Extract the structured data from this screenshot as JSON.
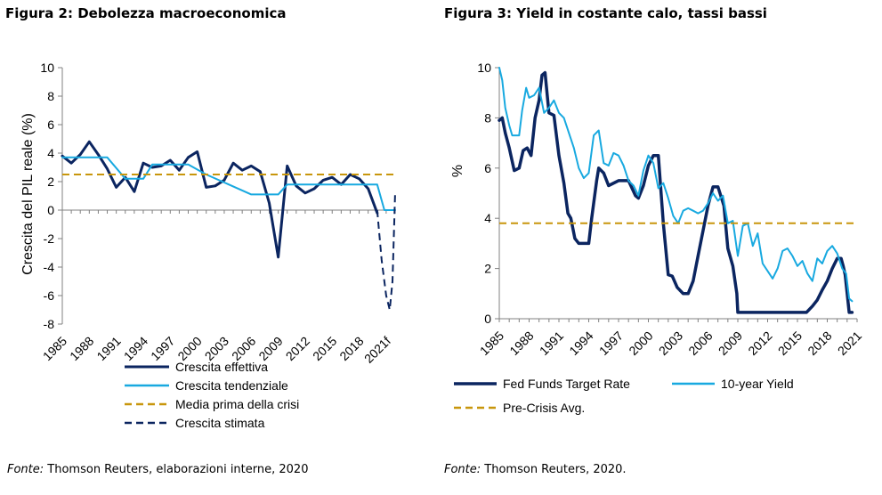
{
  "colors": {
    "navy": "#0b2560",
    "cyan": "#18a9e0",
    "gold": "#c8960c",
    "axis": "#808080"
  },
  "figure2": {
    "title": "Figura 2: Debolezza macroeconomica",
    "source_label": "Fonte:",
    "source_text": " Thomson Reuters, elaborazioni interne, 2020"
  },
  "figure3": {
    "title": "Figura 3: Yield in costante calo, tassi bassi",
    "source_label": "Fonte:",
    "source_text": " Thomson Reuters, 2020."
  },
  "chart_data": [
    {
      "type": "line",
      "ylabel": "Crescita del PIL reale (%)",
      "ylim": [
        -8,
        10
      ],
      "yticks": [
        -8,
        -6,
        -4,
        -2,
        0,
        2,
        4,
        6,
        8,
        10
      ],
      "x_range": [
        1985,
        2022
      ],
      "xtick_values": [
        1985,
        1988,
        1991,
        1994,
        1997,
        2000,
        2003,
        2006,
        2009,
        2012,
        2015,
        2018,
        2021
      ],
      "xtick_labels": [
        "1985",
        "1988",
        "1991",
        "1994",
        "1997",
        "2000",
        "2003",
        "2006",
        "2009",
        "2012",
        "2015",
        "2018",
        "2021f"
      ],
      "grid": false,
      "legend_position": "bottom",
      "series": [
        {
          "name": "Crescita effettiva",
          "color": "navy",
          "style": "solid",
          "width": 3,
          "x": [
            1985,
            1986,
            1987,
            1988,
            1989,
            1990,
            1991,
            1992,
            1993,
            1994,
            1995,
            1996,
            1997,
            1998,
            1999,
            2000,
            2001,
            2002,
            2003,
            2004,
            2005,
            2006,
            2007,
            2008,
            2009,
            2010,
            2011,
            2012,
            2013,
            2014,
            2015,
            2016,
            2017,
            2018,
            2019,
            2020
          ],
          "y": [
            3.8,
            3.3,
            3.9,
            4.8,
            3.9,
            2.9,
            1.6,
            2.3,
            1.3,
            3.3,
            3.0,
            3.1,
            3.5,
            2.8,
            3.7,
            4.1,
            1.6,
            1.7,
            2.1,
            3.3,
            2.8,
            3.1,
            2.7,
            0.5,
            -3.3,
            3.1,
            1.7,
            1.2,
            1.5,
            2.1,
            2.3,
            1.8,
            2.5,
            2.2,
            1.5,
            -0.2
          ]
        },
        {
          "name": "Crescita tendenziale",
          "color": "cyan",
          "style": "solid",
          "width": 2,
          "x": [
            1985,
            1990,
            1992,
            1994,
            1995,
            1999,
            2001,
            2006,
            2009,
            2010,
            2020,
            2020.8,
            2022
          ],
          "y": [
            3.7,
            3.7,
            2.2,
            2.2,
            3.2,
            3.2,
            2.5,
            1.1,
            1.1,
            1.8,
            1.8,
            0,
            0
          ]
        },
        {
          "name": "Media prima della crisi",
          "color": "gold",
          "style": "dashed",
          "width": 2,
          "x": [
            1985,
            2022
          ],
          "y": [
            2.5,
            2.5
          ]
        },
        {
          "name": "Crescita stimata",
          "color": "navy",
          "style": "dashed",
          "width": 2,
          "x": [
            2020,
            2020.5,
            2021,
            2021.4,
            2021.7,
            2022
          ],
          "y": [
            0,
            -3.5,
            -6,
            -7,
            -5,
            1.3
          ]
        }
      ]
    },
    {
      "type": "line",
      "ylabel": "%",
      "ylim": [
        0,
        10
      ],
      "yticks": [
        0,
        2,
        4,
        6,
        8,
        10
      ],
      "x_range": [
        1985,
        2021
      ],
      "xtick_values": [
        1985,
        1988,
        1991,
        1994,
        1997,
        2000,
        2003,
        2006,
        2009,
        2012,
        2015,
        2018,
        2021
      ],
      "xtick_labels": [
        "1985",
        "1988",
        "1991",
        "1994",
        "1997",
        "2000",
        "2003",
        "2006",
        "2009",
        "2012",
        "2015",
        "2018",
        "2021"
      ],
      "grid": false,
      "legend_position": "bottom",
      "series": [
        {
          "name": "Fed Funds Target Rate",
          "color": "navy",
          "style": "solid",
          "width": 3.5,
          "x": [
            1985,
            1985.3,
            1985.6,
            1986,
            1986.5,
            1987,
            1987.4,
            1987.8,
            1988.2,
            1988.6,
            1989,
            1989.3,
            1989.6,
            1990,
            1990.5,
            1991,
            1991.5,
            1991.9,
            1992.2,
            1992.6,
            1993,
            1994,
            1994.3,
            1994.8,
            1995,
            1995.5,
            1996,
            1997,
            1998,
            1998.7,
            1999,
            1999.5,
            2000,
            2000.5,
            2001,
            2001.5,
            2002,
            2002.4,
            2002.9,
            2003.5,
            2004,
            2004.5,
            2005,
            2005.5,
            2006,
            2006.5,
            2007,
            2007.6,
            2008,
            2008.5,
            2008.9,
            2009,
            2010,
            2012,
            2014,
            2015.9,
            2016.5,
            2017,
            2017.5,
            2018,
            2018.5,
            2019,
            2019.4,
            2019.6,
            2019.8,
            2020.2,
            2020.5
          ],
          "y": [
            7.9,
            8,
            7.4,
            6.8,
            5.9,
            6,
            6.7,
            6.8,
            6.5,
            8,
            8.7,
            9.7,
            9.8,
            8.2,
            8.1,
            6.5,
            5.4,
            4.2,
            4,
            3.2,
            3,
            3,
            4,
            5.5,
            6,
            5.8,
            5.3,
            5.5,
            5.5,
            4.9,
            4.8,
            5.3,
            6.1,
            6.5,
            6.5,
            3.8,
            1.75,
            1.7,
            1.25,
            1,
            1,
            1.5,
            2.5,
            3.5,
            4.5,
            5.25,
            5.25,
            4.5,
            2.8,
            2.1,
            1,
            0.25,
            0.25,
            0.25,
            0.25,
            0.25,
            0.5,
            0.75,
            1.15,
            1.5,
            2,
            2.4,
            2.4,
            2.1,
            1.75,
            0.25,
            0.25
          ]
        },
        {
          "name": "10-year Yield",
          "color": "cyan",
          "style": "solid",
          "width": 2,
          "x": [
            1985,
            1985.3,
            1985.6,
            1986,
            1986.3,
            1986.7,
            1987,
            1987.3,
            1987.7,
            1988,
            1988.5,
            1989,
            1989.5,
            1990,
            1990.5,
            1991,
            1991.5,
            1992,
            1992.5,
            1993,
            1993.5,
            1994,
            1994.5,
            1995,
            1995.5,
            1996,
            1996.5,
            1997,
            1997.5,
            1998,
            1998.5,
            1999,
            1999.5,
            2000,
            2000.5,
            2001,
            2001.5,
            2002,
            2002.5,
            2003,
            2003.5,
            2004,
            2004.5,
            2005,
            2005.5,
            2006,
            2006.5,
            2007,
            2007.5,
            2008,
            2008.5,
            2009,
            2009.5,
            2010,
            2010.5,
            2011,
            2011.5,
            2012,
            2012.5,
            2013,
            2013.5,
            2014,
            2014.5,
            2015,
            2015.5,
            2016,
            2016.5,
            2017,
            2017.5,
            2018,
            2018.5,
            2019,
            2019.5,
            2019.9,
            2020.2,
            2020.5
          ],
          "y": [
            10,
            9.5,
            8.4,
            7.7,
            7.3,
            7.3,
            7.3,
            8.3,
            9.2,
            8.8,
            8.9,
            9.2,
            8.2,
            8.4,
            8.7,
            8.2,
            8,
            7.4,
            6.8,
            6,
            5.6,
            5.8,
            7.3,
            7.5,
            6.2,
            6.1,
            6.6,
            6.5,
            6.1,
            5.5,
            5.3,
            4.9,
            5.9,
            6.5,
            6.2,
            5.2,
            5.4,
            4.8,
            4.1,
            3.8,
            4.3,
            4.4,
            4.3,
            4.2,
            4.3,
            4.6,
            5,
            4.7,
            4.9,
            3.8,
            3.9,
            2.5,
            3.7,
            3.8,
            2.9,
            3.4,
            2.2,
            1.9,
            1.6,
            2,
            2.7,
            2.8,
            2.5,
            2.1,
            2.3,
            1.8,
            1.5,
            2.4,
            2.2,
            2.7,
            2.9,
            2.6,
            2,
            1.8,
            0.8,
            0.7
          ]
        },
        {
          "name": "Pre-Crisis Avg.",
          "color": "gold",
          "style": "dashed",
          "width": 2,
          "x": [
            1985,
            2021
          ],
          "y": [
            3.8,
            3.8
          ]
        }
      ]
    }
  ]
}
